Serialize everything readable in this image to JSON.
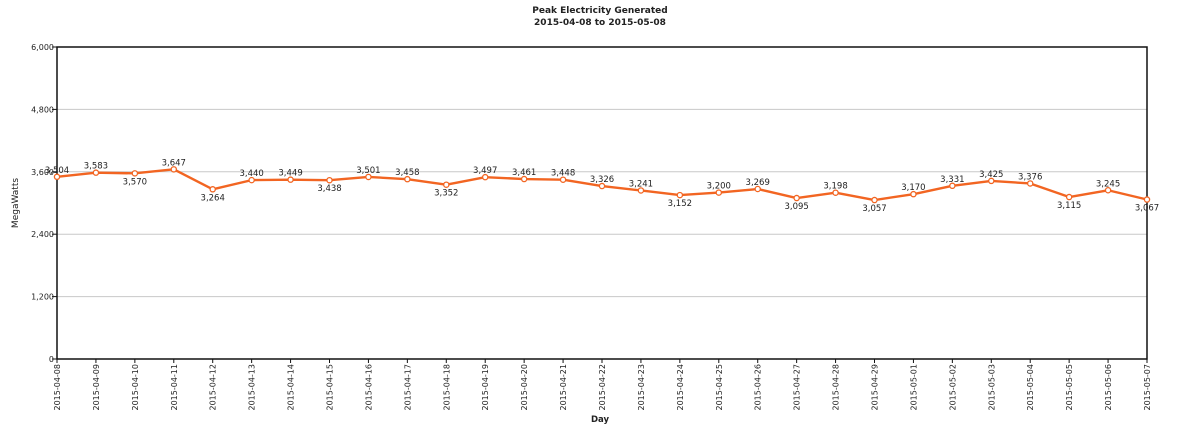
{
  "chart_data": {
    "type": "line",
    "title": "Peak Electricity Generated",
    "subtitle": "2015-04-08 to 2015-05-08",
    "xlabel": "Day",
    "ylabel": "MegaWatts",
    "ylim": [
      0,
      6000
    ],
    "yticks": [
      "0",
      "1,200",
      "2,400",
      "3,600",
      "4,800",
      "6,000"
    ],
    "grid": true,
    "categories": [
      "2015-04-08",
      "2015-04-09",
      "2015-04-10",
      "2015-04-11",
      "2015-04-12",
      "2015-04-13",
      "2015-04-14",
      "2015-04-15",
      "2015-04-16",
      "2015-04-17",
      "2015-04-18",
      "2015-04-19",
      "2015-04-20",
      "2015-04-21",
      "2015-04-22",
      "2015-04-23",
      "2015-04-24",
      "2015-04-25",
      "2015-04-26",
      "2015-04-27",
      "2015-04-28",
      "2015-04-29",
      "2015-05-01",
      "2015-05-02",
      "2015-05-03",
      "2015-05-04",
      "2015-05-05",
      "2015-05-06",
      "2015-05-07"
    ],
    "series": [
      {
        "values": [
          3504,
          3583,
          3570,
          3647,
          3264,
          3440,
          3449,
          3438,
          3501,
          3458,
          3352,
          3497,
          3461,
          3448,
          3326,
          3241,
          3152,
          3200,
          3269,
          3095,
          3198,
          3057,
          3170,
          3331,
          3425,
          3376,
          3115,
          3245,
          3067
        ],
        "labels": [
          "3,504",
          "3,583",
          "3,570",
          "3,647",
          "3,264",
          "3,440",
          "3,449",
          "3,438",
          "3,501",
          "3,458",
          "3,352",
          "3,497",
          "3,461",
          "3,448",
          "3,326",
          "3,241",
          "3,152",
          "3,200",
          "3,269",
          "3,095",
          "3,198",
          "3,057",
          "3,170",
          "3,331",
          "3,425",
          "3,376",
          "3,115",
          "3,245",
          "3,067"
        ],
        "color": "#f26522"
      }
    ]
  }
}
